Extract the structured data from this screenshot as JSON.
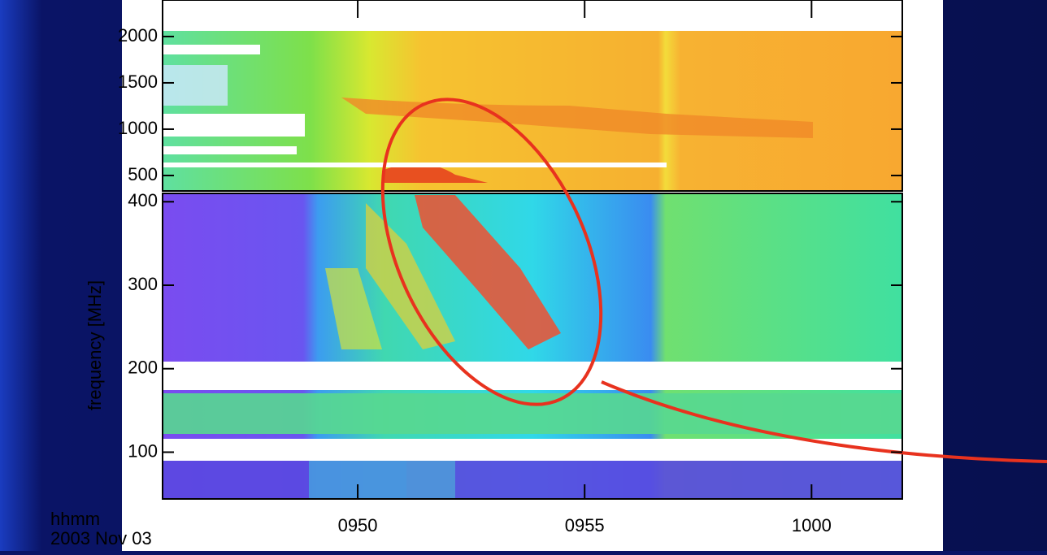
{
  "chart_data": {
    "type": "spectrogram",
    "ylabel": "frequency [MHz]",
    "xlabel": "hhmm",
    "date": "2003 Nov 03",
    "xlim": [
      45.7,
      62.0
    ],
    "xticks": [
      {
        "value": 50,
        "label": "0950"
      },
      {
        "value": 55,
        "label": "0955"
      },
      {
        "value": 60,
        "label": "1000"
      }
    ],
    "panels": [
      {
        "ylim": [
          333,
          2061
        ],
        "yticks": [
          500,
          1000,
          1500,
          2000
        ]
      },
      {
        "ylim": [
          44,
          410
        ],
        "yticks": [
          100,
          200,
          300,
          400
        ]
      }
    ]
  }
}
